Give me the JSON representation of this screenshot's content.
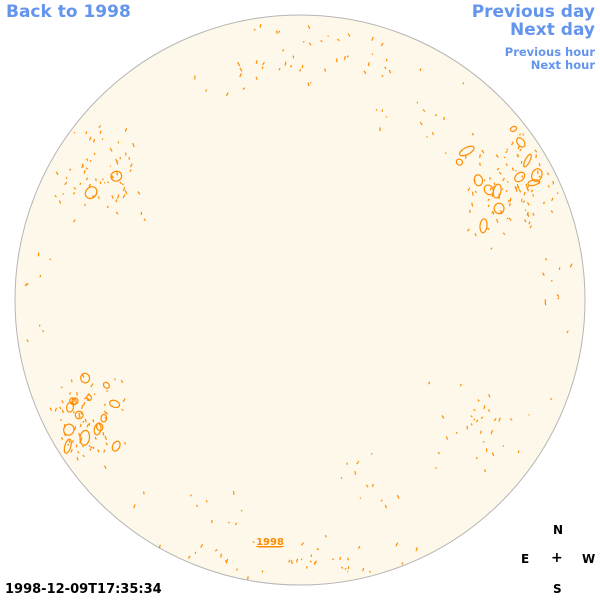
{
  "nav": {
    "back": "Back to 1998",
    "previous_day": "Previous day",
    "next_day": "Next day",
    "previous_hour": "Previous hour",
    "next_hour": "Next hour"
  },
  "disk": {
    "year_label": "1998",
    "fill_color": "#fdf8ea",
    "border_color": "#b5b5b5",
    "contour_color": "#ff8c00"
  },
  "timestamp": "1998-12-09T17:35:34",
  "compass": {
    "n": "N",
    "e": "E",
    "center": "+",
    "w": "W",
    "s": "S"
  }
}
